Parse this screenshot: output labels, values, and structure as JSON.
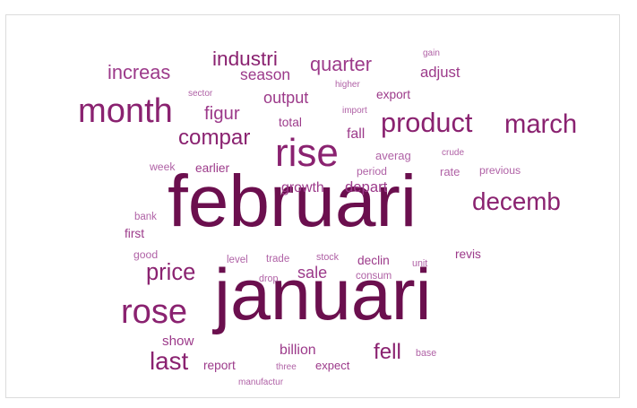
{
  "chart_data": {
    "type": "wordcloud",
    "colors": {
      "darkest": "#6b0f4e",
      "dark": "#8a2270",
      "medium": "#9c3a8a",
      "light": "#b062a6"
    },
    "words": [
      {
        "text": "februari",
        "weight": 100,
        "tone": "darkest"
      },
      {
        "text": "januari",
        "weight": 98,
        "tone": "darkest"
      },
      {
        "text": "rise",
        "weight": 58,
        "tone": "dark"
      },
      {
        "text": "month",
        "weight": 50,
        "tone": "dark"
      },
      {
        "text": "rose",
        "weight": 50,
        "tone": "dark"
      },
      {
        "text": "product",
        "weight": 40,
        "tone": "dark"
      },
      {
        "text": "march",
        "weight": 38,
        "tone": "dark"
      },
      {
        "text": "decemb",
        "weight": 36,
        "tone": "dark"
      },
      {
        "text": "last",
        "weight": 36,
        "tone": "dark"
      },
      {
        "text": "price",
        "weight": 33,
        "tone": "dark"
      },
      {
        "text": "compar",
        "weight": 31,
        "tone": "dark"
      },
      {
        "text": "fell",
        "weight": 31,
        "tone": "dark"
      },
      {
        "text": "industri",
        "weight": 29,
        "tone": "dark"
      },
      {
        "text": "increas",
        "weight": 28,
        "tone": "medium"
      },
      {
        "text": "quarter",
        "weight": 28,
        "tone": "medium"
      },
      {
        "text": "figur",
        "weight": 26,
        "tone": "medium"
      },
      {
        "text": "output",
        "weight": 23,
        "tone": "medium"
      },
      {
        "text": "sale",
        "weight": 23,
        "tone": "medium"
      },
      {
        "text": "season",
        "weight": 22,
        "tone": "medium"
      },
      {
        "text": "adjust",
        "weight": 21,
        "tone": "medium"
      },
      {
        "text": "depart",
        "weight": 21,
        "tone": "medium"
      },
      {
        "text": "growth",
        "weight": 20,
        "tone": "medium"
      },
      {
        "text": "fall",
        "weight": 20,
        "tone": "medium"
      },
      {
        "text": "billion",
        "weight": 20,
        "tone": "medium"
      },
      {
        "text": "show",
        "weight": 19,
        "tone": "medium"
      },
      {
        "text": "export",
        "weight": 17,
        "tone": "medium"
      },
      {
        "text": "total",
        "weight": 17,
        "tone": "medium"
      },
      {
        "text": "earlier",
        "weight": 17,
        "tone": "medium"
      },
      {
        "text": "first",
        "weight": 17,
        "tone": "medium"
      },
      {
        "text": "declin",
        "weight": 17,
        "tone": "medium"
      },
      {
        "text": "revis",
        "weight": 17,
        "tone": "medium"
      },
      {
        "text": "report",
        "weight": 17,
        "tone": "medium"
      },
      {
        "text": "expect",
        "weight": 16,
        "tone": "medium"
      },
      {
        "text": "averag",
        "weight": 16,
        "tone": "light"
      },
      {
        "text": "rate",
        "weight": 16,
        "tone": "light"
      },
      {
        "text": "previous",
        "weight": 15,
        "tone": "light"
      },
      {
        "text": "period",
        "weight": 15,
        "tone": "light"
      },
      {
        "text": "week",
        "weight": 15,
        "tone": "light"
      },
      {
        "text": "good",
        "weight": 15,
        "tone": "light"
      },
      {
        "text": "level",
        "weight": 14,
        "tone": "light"
      },
      {
        "text": "trade",
        "weight": 14,
        "tone": "light"
      },
      {
        "text": "consum",
        "weight": 14,
        "tone": "light"
      },
      {
        "text": "bank",
        "weight": 14,
        "tone": "light"
      },
      {
        "text": "drop",
        "weight": 13,
        "tone": "light"
      },
      {
        "text": "stock",
        "weight": 13,
        "tone": "light"
      },
      {
        "text": "unit",
        "weight": 13,
        "tone": "light"
      },
      {
        "text": "base",
        "weight": 13,
        "tone": "light"
      },
      {
        "text": "higher",
        "weight": 12,
        "tone": "light"
      },
      {
        "text": "gain",
        "weight": 12,
        "tone": "light"
      },
      {
        "text": "crude",
        "weight": 12,
        "tone": "light"
      },
      {
        "text": "sector",
        "weight": 12,
        "tone": "light"
      },
      {
        "text": "import",
        "weight": 12,
        "tone": "light"
      },
      {
        "text": "three",
        "weight": 12,
        "tone": "light"
      },
      {
        "text": "manufactur",
        "weight": 12,
        "tone": "light"
      }
    ]
  }
}
